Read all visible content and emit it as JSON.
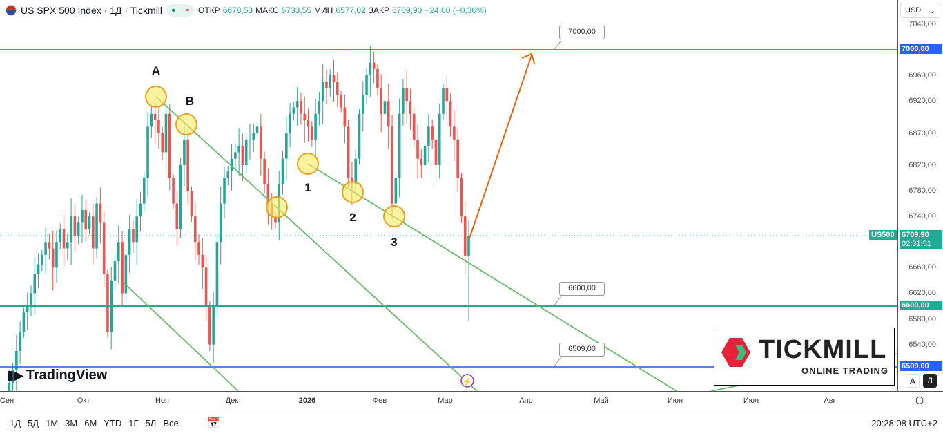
{
  "header": {
    "title": "US SPX 500 Index · 1Д · Tickmill",
    "open_label": "ОТКР",
    "open": "6678,53",
    "high_label": "МАКС",
    "high": "6733,55",
    "low_label": "МИН",
    "low": "6577,02",
    "close_label": "ЗАКР",
    "close": "6709,90",
    "change": "−24,00 (−0,36%)"
  },
  "currency": "USD",
  "price_axis": {
    "ticks": [
      "7040,00",
      "6960,00",
      "6920,00",
      "6870,00",
      "6820,00",
      "6780,00",
      "6740,00",
      "6660,00",
      "6620,00",
      "6580,00",
      "6540,00"
    ],
    "tick_prices": [
      7040,
      6960,
      6920,
      6870,
      6820,
      6780,
      6740,
      6660,
      6620,
      6580,
      6540
    ],
    "tag_7000": "7000,00",
    "tag_6600": "6600,00",
    "tag_6509": "6509,00",
    "symbol_tag": "US500",
    "last_price": "6709,90",
    "countdown": "02:31:51"
  },
  "callouts": {
    "c7000": "7000,00",
    "c6600": "6600,00",
    "c6509": "6509,00"
  },
  "labels": {
    "a": "A",
    "b": "B",
    "one": "1",
    "two": "2",
    "three": "3"
  },
  "time_axis": [
    "Сен",
    "Окт",
    "Ноя",
    "Дек",
    "2026",
    "Фев",
    "Мар",
    "Апр",
    "Май",
    "Июн",
    "Июл",
    "Авг"
  ],
  "periods": [
    "1Д",
    "5Д",
    "1M",
    "3M",
    "6M",
    "YTD",
    "1Г",
    "5Л",
    "Все"
  ],
  "clock": "20:28:08 UTC+2",
  "logo": {
    "brand": "TICKMILL",
    "tagline": "ONLINE TRADING"
  },
  "watermark": "TradingView",
  "scale_buttons": [
    "A",
    "Л"
  ],
  "colors": {
    "up": "#26a69a",
    "down": "#ef5350",
    "blue": "#2962ff",
    "teal": "#22ab94",
    "trend": "#66bb6a",
    "arrow": "#e8630a"
  },
  "closes": [
    6460,
    6480,
    6500,
    6530,
    6560,
    6590,
    6600,
    6620,
    6650,
    6665,
    6680,
    6700,
    6690,
    6660,
    6700,
    6720,
    6690,
    6700,
    6740,
    6710,
    6730,
    6750,
    6720,
    6740,
    6690,
    6760,
    6730,
    6650,
    6560,
    6640,
    6670,
    6700,
    6620,
    6680,
    6720,
    6700,
    6740,
    6760,
    6800,
    6880,
    6900,
    6890,
    6870,
    6840,
    6900,
    6800,
    6760,
    6720,
    6820,
    6860,
    6780,
    6740,
    6700,
    6680,
    6660,
    6600,
    6540,
    6600,
    6700,
    6760,
    6800,
    6810,
    6830,
    6840,
    6850,
    6820,
    6860,
    6860,
    6870,
    6880,
    6830,
    6790,
    6760,
    6740,
    6730,
    6790,
    6830,
    6870,
    6900,
    6910,
    6920,
    6900,
    6890,
    6880,
    6860,
    6900,
    6920,
    6950,
    6940,
    6960,
    6950,
    6930,
    6910,
    6880,
    6800,
    6790,
    6830,
    6900,
    6930,
    6960,
    6980,
    6970,
    6940,
    6900,
    6920,
    6880,
    6760,
    6800,
    6900,
    6940,
    6920,
    6900,
    6860,
    6830,
    6820,
    6850,
    6880,
    6860,
    6820,
    6900,
    6940,
    6920,
    6880,
    6860,
    6800,
    6740,
    6678.53,
    6709.9
  ]
}
